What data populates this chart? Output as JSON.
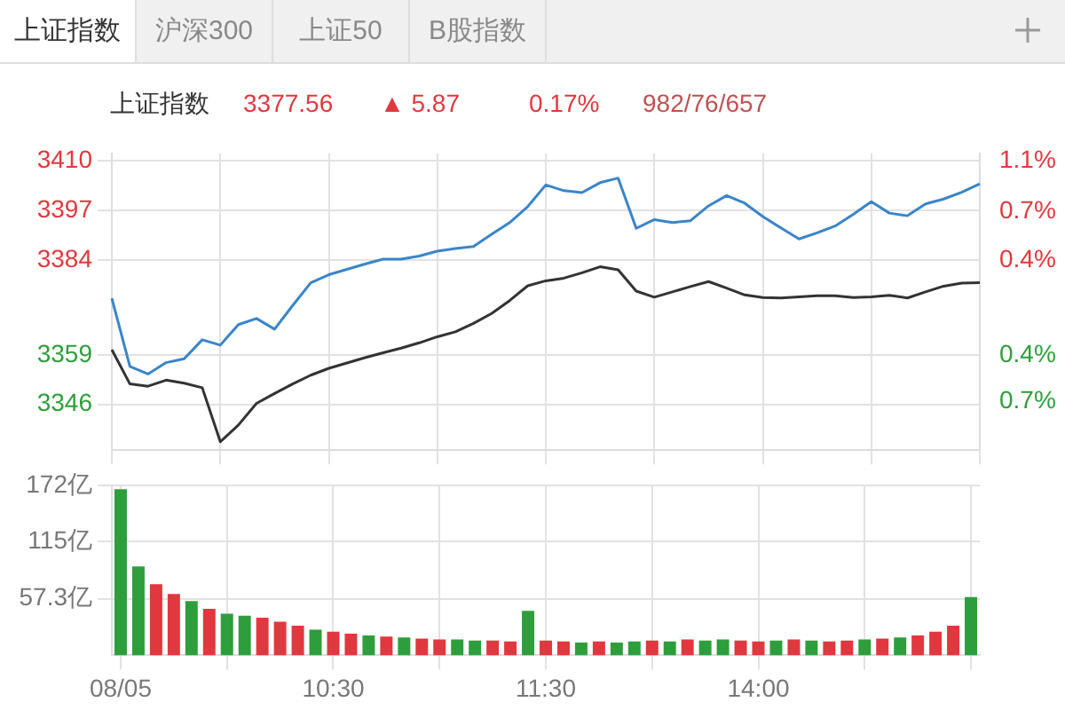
{
  "chart_data": [
    {
      "type": "line",
      "title": "上证指数",
      "annotations": [
        "上证指数",
        "沪深300",
        "上证50",
        "B股指数",
        "3377.56",
        "▲ 5.87",
        "0.17%",
        "982/76/657"
      ],
      "categories": [
        null,
        null,
        null,
        null,
        null,
        null,
        null,
        null,
        null,
        null,
        null,
        null,
        null,
        null,
        null,
        null,
        null,
        null,
        null,
        null,
        null,
        null,
        null,
        null,
        null,
        null,
        null,
        null,
        null,
        null,
        null,
        null,
        null,
        null,
        null,
        null,
        null,
        null,
        null,
        null,
        null,
        null,
        null,
        null,
        null,
        null,
        null,
        null,
        null
      ],
      "ylim": [
        3334,
        3412
      ],
      "yticks": [
        3346,
        3359,
        3384,
        3397,
        3410
      ],
      "y2lim": [
        -1.118,
        1.196
      ],
      "y2ticks": [
        {
          "value": -0.74,
          "label": "0.7%"
        },
        {
          "value": -0.376,
          "label": "0.4%"
        },
        {
          "value": 0.365,
          "label": "0.4%"
        },
        {
          "value": 0.74,
          "label": "0.7%"
        },
        {
          "value": 1.136,
          "label": "1.1%"
        }
      ],
      "tick_labels": "y",
      "grid": true,
      "marker": "none",
      "series": [
        {
          "color": "#3a85c8",
          "values": [
            3373.9,
            3356,
            3354,
            3357,
            3358,
            3363,
            3361.6,
            3367,
            3368.6,
            3365.8,
            3372,
            3378,
            3380.1,
            3381.5,
            3382.9,
            3384.2,
            3384.2,
            3385,
            3386.3,
            3387,
            3387.5,
            3390.7,
            3393.8,
            3398,
            3403.7,
            3402.2,
            3401.7,
            3404.3,
            3405.5,
            3392.3,
            3394.6,
            3393.8,
            3394.3,
            3398.2,
            3400.9,
            3398.9,
            3395.4,
            3392.4,
            3389.5,
            3391.1,
            3392.9,
            3396,
            3399.3,
            3396.3,
            3395.6,
            3398.7,
            3400,
            3401.8,
            3404
          ]
        },
        {
          "color": "#333333",
          "values": [
            3360.4,
            3351.4,
            3350.8,
            3352.4,
            3351.6,
            3350.4,
            3336.2,
            3340.6,
            3346.3,
            3348.9,
            3351.4,
            3353.7,
            3355.5,
            3356.9,
            3358.3,
            3359.6,
            3360.8,
            3362.2,
            3363.8,
            3365.1,
            3367.3,
            3369.9,
            3373.3,
            3377.2,
            3378.5,
            3379.2,
            3380.6,
            3382.2,
            3381.4,
            3375.8,
            3374.2,
            3375.6,
            3377,
            3378.3,
            3376.6,
            3374.8,
            3374.1,
            3374,
            3374.3,
            3374.6,
            3374.6,
            3374.1,
            3374.3,
            3374.7,
            3374,
            3375.6,
            3377.1,
            3377.9,
            3378
          ]
        }
      ]
    },
    {
      "type": "bar",
      "categories": [
        "08/05",
        null,
        null,
        null,
        null,
        null,
        null,
        null,
        null,
        null,
        null,
        null,
        "10:30",
        null,
        null,
        null,
        null,
        null,
        null,
        null,
        null,
        null,
        null,
        null,
        "11:30",
        null,
        null,
        null,
        null,
        null,
        null,
        null,
        null,
        null,
        null,
        null,
        "14:00",
        null,
        null,
        null,
        null,
        null,
        null,
        null,
        null,
        null,
        null,
        null,
        null
      ],
      "values": [
        168,
        90,
        72,
        62,
        55,
        47,
        42,
        40,
        38,
        34,
        30,
        26,
        24,
        22,
        20,
        19,
        18,
        17,
        16,
        16,
        15,
        15,
        14,
        45,
        15,
        14,
        13,
        14,
        13,
        14,
        15,
        14,
        16,
        15,
        16,
        15,
        14,
        15,
        16,
        15,
        14,
        15,
        16,
        17,
        18,
        20,
        24,
        30,
        59
      ],
      "colors": [
        "#2e9e3c",
        "#2e9e3c",
        "#e0383e",
        "#e0383e",
        "#2e9e3c",
        "#e0383e",
        "#2e9e3c",
        "#2e9e3c",
        "#e0383e",
        "#e0383e",
        "#e0383e",
        "#2e9e3c",
        "#e0383e",
        "#e0383e",
        "#2e9e3c",
        "#e0383e",
        "#2e9e3c",
        "#e0383e",
        "#e0383e",
        "#2e9e3c",
        "#2e9e3c",
        "#e0383e",
        "#e0383e",
        "#2e9e3c",
        "#e0383e",
        "#e0383e",
        "#2e9e3c",
        "#e0383e",
        "#2e9e3c",
        "#2e9e3c",
        "#e0383e",
        "#2e9e3c",
        "#e0383e",
        "#2e9e3c",
        "#2e9e3c",
        "#e0383e",
        "#e0383e",
        "#2e9e3c",
        "#e0383e",
        "#2e9e3c",
        "#e0383e",
        "#e0383e",
        "#2e9e3c",
        "#e0383e",
        "#2e9e3c",
        "#e0383e",
        "#e0383e",
        "#e0383e",
        "#2e9e3c"
      ],
      "ylim": [
        0,
        172
      ],
      "yticks": [
        {
          "value": 57.3,
          "label": "57.3亿"
        },
        {
          "value": 115,
          "label": "115亿"
        },
        {
          "value": 172,
          "label": "172亿"
        }
      ],
      "grid": true
    }
  ]
}
